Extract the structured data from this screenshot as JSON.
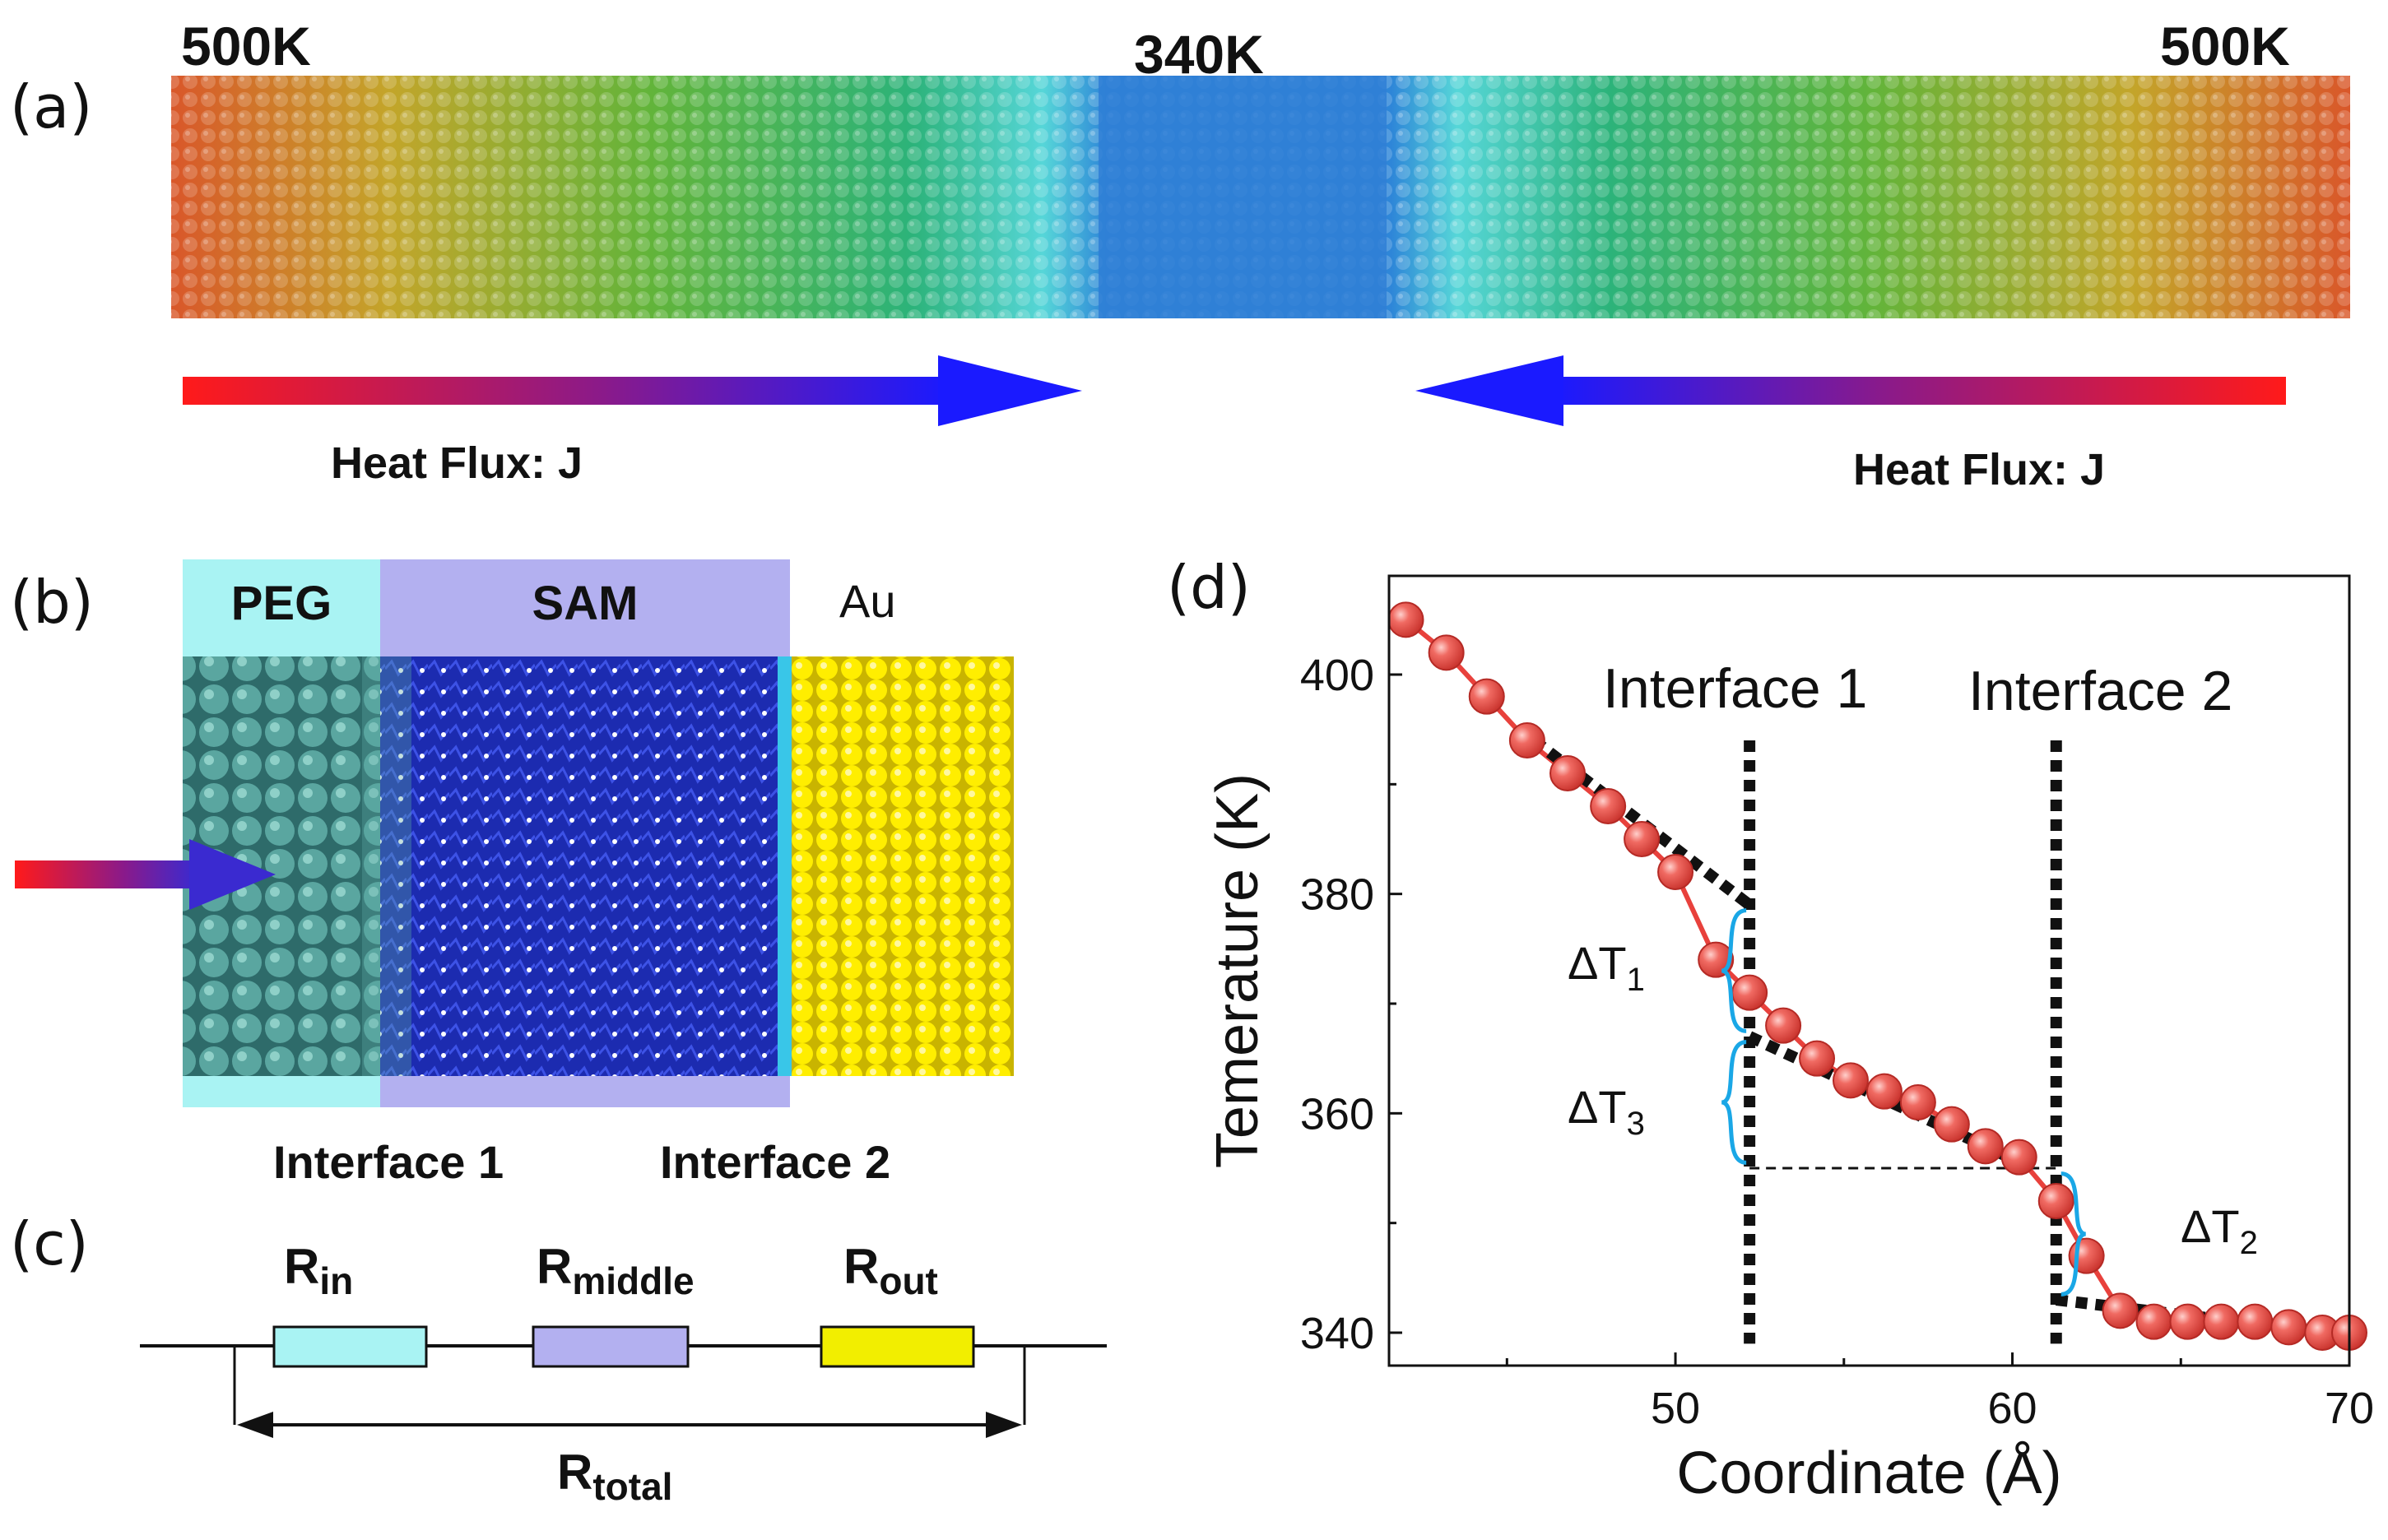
{
  "panel_a": {
    "label": "(a)",
    "temp_left": "500K",
    "temp_center": "340K",
    "temp_right": "500K",
    "flux_left": "Heat Flux: J",
    "flux_right": "Heat Flux: J"
  },
  "panel_b": {
    "label": "(b)",
    "peg": "PEG",
    "sam": "SAM",
    "au": "Au",
    "interface1": "Interface 1",
    "interface2": "Interface 2"
  },
  "panel_c": {
    "label": "(c)",
    "r_in": "R",
    "r_in_sub": "in",
    "r_middle": "R",
    "r_middle_sub": "middle",
    "r_out": "R",
    "r_out_sub": "out",
    "r_total": "R",
    "r_total_sub": "total",
    "colors": {
      "in": "#a9f3f3",
      "middle": "#b3b0f0",
      "out": "#f2ee00"
    }
  },
  "panel_d": {
    "label": "(d)",
    "annot_interface1": "Interface 1",
    "annot_interface2": "Interface 2",
    "dT1": "ΔT",
    "dT1_sub": "1",
    "dT2": "ΔT",
    "dT2_sub": "2",
    "dT3": "ΔT",
    "dT3_sub": "3"
  },
  "chart_data": {
    "type": "scatter",
    "title": "",
    "xlabel": "Coordinate (Å)",
    "ylabel": "Temerature (K)",
    "xlim": [
      41.5,
      70
    ],
    "ylim": [
      337,
      409
    ],
    "xticks": [
      50,
      60,
      70
    ],
    "yticks": [
      340,
      360,
      380,
      400
    ],
    "series": [
      {
        "name": "temperature",
        "color": "#e8413c",
        "x": [
          42,
          43.2,
          44.4,
          45.6,
          46.8,
          48,
          49,
          50,
          51.2,
          52.2,
          53.2,
          54.2,
          55.2,
          56.2,
          57.2,
          58.2,
          59.2,
          60.2,
          61.3,
          62.2,
          63.2,
          64.2,
          65.2,
          66.2,
          67.2,
          68.2,
          69.2,
          70
        ],
        "y": [
          405,
          402,
          398,
          394,
          391,
          388,
          385,
          382,
          374,
          371,
          368,
          365,
          363,
          362,
          361,
          359,
          357,
          356,
          352,
          347,
          342,
          341,
          341,
          341,
          341,
          340.5,
          340,
          340
        ]
      }
    ],
    "interfaces_x": [
      52.2,
      61.3
    ],
    "fit_lines": [
      {
        "x": [
          45.8,
          52.2
        ],
        "y": [
          394,
          379
        ]
      },
      {
        "x": [
          52.2,
          60.6
        ],
        "y": [
          367,
          355
        ]
      },
      {
        "x": [
          61.3,
          69.5
        ],
        "y": [
          343,
          340
        ]
      }
    ],
    "reference_line": {
      "x": [
        52.2,
        61.3
      ],
      "y": [
        355,
        355
      ]
    }
  }
}
